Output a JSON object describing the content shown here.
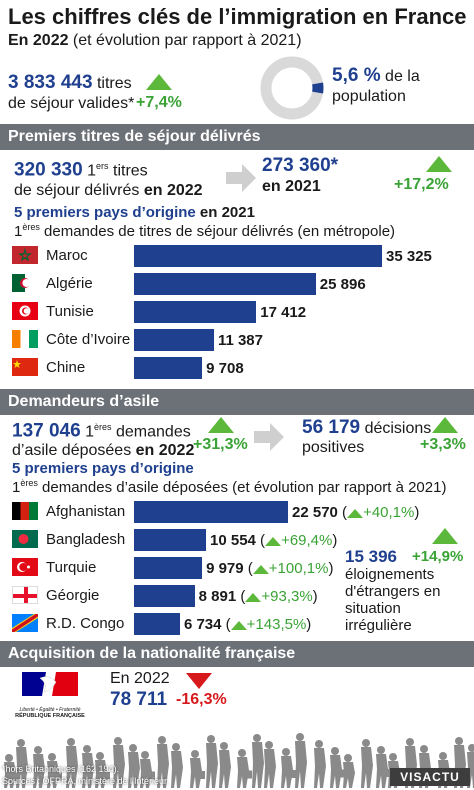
{
  "header": {
    "title": "Les chiffres clés de l’immigration en France",
    "subtitle_bold": "En 2022",
    "subtitle_rest": " (et évolution par rapport à 2021)"
  },
  "top": {
    "titres_value": "3 833 443",
    "titres_label1": "titres",
    "titres_label2": "de séjour valides*",
    "titres_change": "+7,4%",
    "population_pct": "5,6 %",
    "population_label1": "de la",
    "population_label2": "population",
    "population_fraction": 0.056
  },
  "section1": {
    "title": "Premiers titres de séjour délivrés",
    "v2022_value": "320 330",
    "v2022_sup": "ers",
    "v2022_l1a": "1",
    "v2022_l1b": " titres",
    "v2022_l2a": "de séjour délivrés ",
    "v2022_l2b": "en 2022",
    "v2021_value": "273 360*",
    "v2021_label": "en 2021",
    "change": "+17,2%",
    "top5_title_a": "5 premiers pays d’origine",
    "top5_title_b": " en 2021",
    "desc_a": "1",
    "desc_sup": "ères",
    "desc_b": " demandes de titres de séjour délivrés (en métropole)"
  },
  "section2": {
    "title": "Demandeurs d’asile",
    "v_value": "137 046",
    "v_l1a": "1",
    "v_sup": "ères",
    "v_l1b": " demandes",
    "v_l2a": "d’asile déposées ",
    "v_l2b": "en 2022",
    "v_change": "+31,3%",
    "decisions_value": "56 179",
    "decisions_l1": "décisions",
    "decisions_l2": "positives",
    "decisions_change": "+3,3%",
    "top5_title": "5 premiers pays d’origine",
    "desc_a": "1",
    "desc_sup": "ères",
    "desc_b": " demandes d’asile déposées (et évolution par rapport à 2021)",
    "eloign_value": "15 396",
    "eloign_change": "+14,9%",
    "eloign_l1": "éloignements",
    "eloign_l2": "d'étrangers en",
    "eloign_l3": "situation",
    "eloign_l4": "irrégulière"
  },
  "section3": {
    "title": "Acquisition de la nationalité française",
    "year": "En 2022",
    "value": "78 711",
    "change": "-16,3%",
    "logo_l1": "Liberté • Égalité • Fraternité",
    "logo_l2": "RÉPUBLIQUE FRANÇAISE"
  },
  "footer": {
    "note": "*hors Britanniques (162 194).",
    "sources": "Sources : OFPRA, ministère de l’Intérieur.",
    "brand": "VISACTU"
  },
  "colors": {
    "bar": "#1f3f8f",
    "band": "#6c7178",
    "up": "#5cb83a",
    "down": "#d7191c"
  },
  "chart_data": [
    {
      "type": "bar",
      "categories": [
        "Maroc",
        "Algérie",
        "Tunisie",
        "Côte d’Ivoire",
        "Chine"
      ],
      "values": [
        35325,
        25896,
        17412,
        11387,
        9708
      ],
      "value_labels": [
        "35 325",
        "25 896",
        "17 412",
        "11 387",
        "9 708"
      ]
    },
    {
      "type": "bar",
      "categories": [
        "Afghanistan",
        "Bangladesh",
        "Turquie",
        "Géorgie",
        "R.D. Congo"
      ],
      "values": [
        22570,
        10554,
        9979,
        8891,
        6734
      ],
      "value_labels": [
        "22 570",
        "10 554",
        "9 979",
        "8 891",
        "6 734"
      ],
      "changes": [
        "+40,1%",
        "+69,4%",
        "+100,1%",
        "+93,3%",
        "+143,5%"
      ]
    }
  ]
}
